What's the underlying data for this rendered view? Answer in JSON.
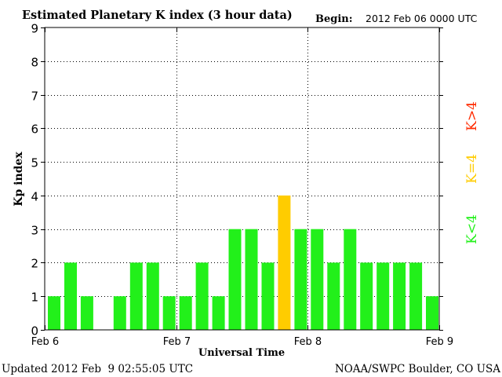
{
  "header": {
    "title": "Estimated Planetary K index (3 hour data)",
    "begin_label": "Begin:",
    "begin_value": "2012 Feb 06 0000 UTC"
  },
  "footer": {
    "updated": "Updated 2012 Feb  9 02:55:05 UTC",
    "source": "NOAA/SWPC Boulder, CO USA"
  },
  "legend": {
    "high": "K>4",
    "equal": "K=4",
    "low": "K<4"
  },
  "colors": {
    "low": "#22f01a",
    "equal": "#ffcc00",
    "high": "#ff2a00",
    "background": "#ffffff",
    "axis": "#000000"
  },
  "chart_data": {
    "type": "bar",
    "xlabel": "Universal Time",
    "ylabel": "Kp index",
    "ylim": [
      0,
      9
    ],
    "yticks": [
      0,
      1,
      2,
      3,
      4,
      5,
      6,
      7,
      8,
      9
    ],
    "xticks": [
      "Feb 6",
      "Feb 7",
      "Feb 8",
      "Feb 9"
    ],
    "grid": "dotted",
    "bins_per_day": 8,
    "values": [
      1,
      2,
      1,
      0,
      1,
      2,
      2,
      1,
      1,
      2,
      1,
      3,
      3,
      2,
      4,
      3,
      3,
      2,
      3,
      2,
      2,
      2,
      2,
      1
    ]
  }
}
